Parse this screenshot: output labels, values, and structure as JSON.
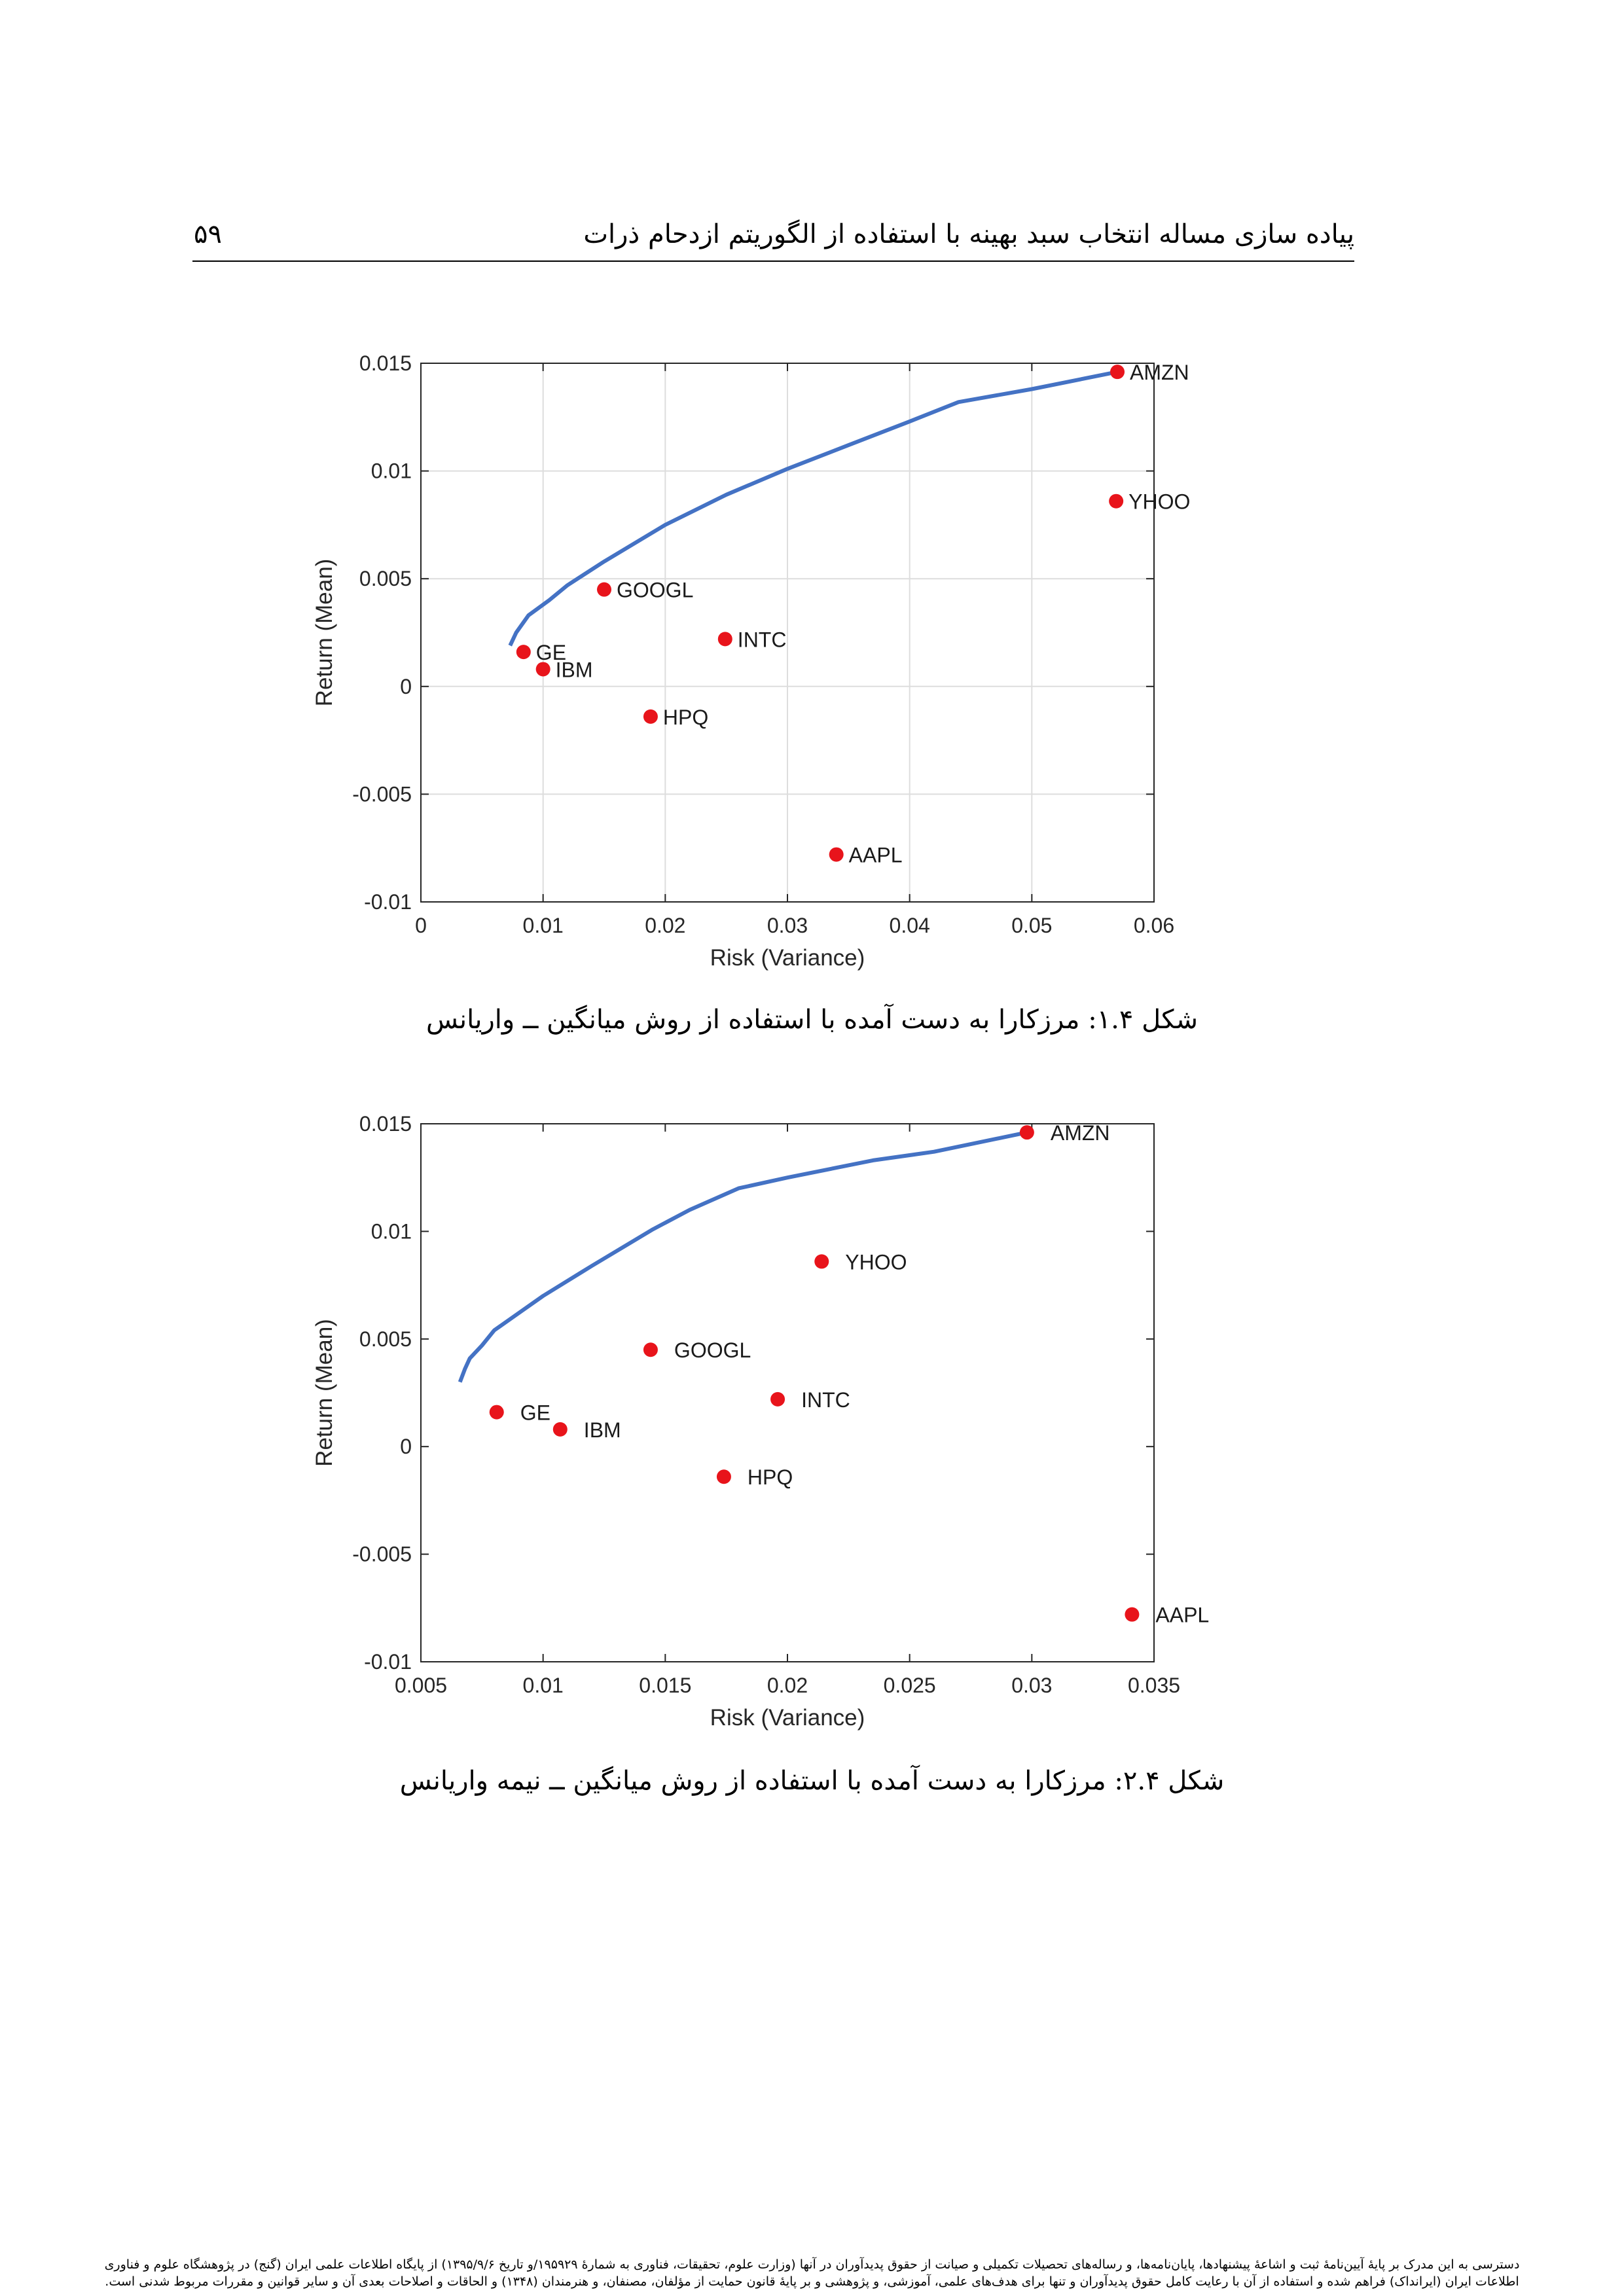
{
  "header": {
    "title": "پیاده سازی مساله انتخاب سبد بهینه با استفاده از الگوریتم ازدحام ذرات",
    "page_number": "۵۹"
  },
  "captions": [
    "شکل ۱.۴: مرزکارا به دست آمده با استفاده از روش میانگین ــ واریانس",
    "شکل ۲.۴: مرزکارا به دست آمده با استفاده از روش میانگین ــ نیمه واریانس"
  ],
  "footer": {
    "line1": "دسترسی به این مدرک بر پایهٔ آیین‌نامهٔ ثبت و اشاعهٔ پیشنهادها، پایان‌نامه‌ها، و رساله‌های تحصیلات تکمیلی و صیانت از حقوق پدیدآوران در آنها (وزارت علوم، تحقیقات، فناوری به شمارهٔ ۱۹۵۹۲۹/و تاریخ ۱۳۹۵/۹/۶)  از پایگاه اطلاعات علمی ایران (گنج) در پژوهشگاه علوم و فناوری",
    "line2": "اطلاعات ایران (ایرانداک) فراهم شده و استفاده از آن با رعایت کامل حقوق پدیدآوران و تنها برای هدف‌های علمی، آموزشی، و پژوهشی و بر پایهٔ قانون حمایت از مؤلفان، مصنفان، و هنرمندان (۱۳۴۸) و الحاقات و اصلاحات بعدی آن و سایر قوانین و مقررات مربوط شدنی است."
  },
  "colors": {
    "frontier": "#4472C4",
    "points": "#E8141B",
    "grid": "#dddddd"
  },
  "chart_data": [
    {
      "type": "scatter",
      "xlabel": "Risk (Variance)",
      "ylabel": "Return (Mean)",
      "xlim": [
        0,
        0.06
      ],
      "ylim": [
        -0.01,
        0.015
      ],
      "xticks": [
        0,
        0.01,
        0.02,
        0.03,
        0.04,
        0.05,
        0.06
      ],
      "xtick_labels": [
        "0",
        "0.01",
        "0.02",
        "0.03",
        "0.04",
        "0.05",
        "0.06"
      ],
      "yticks": [
        -0.01,
        -0.005,
        0,
        0.005,
        0.01,
        0.015
      ],
      "ytick_labels": [
        "-0.01",
        "-0.005",
        "0",
        "0.005",
        "0.01",
        "0.015"
      ],
      "grid": true,
      "points": [
        {
          "label": "AMZN",
          "x": 0.057,
          "y": 0.0146
        },
        {
          "label": "YHOO",
          "x": 0.0569,
          "y": 0.0086
        },
        {
          "label": "GOOGL",
          "x": 0.015,
          "y": 0.0045
        },
        {
          "label": "INTC",
          "x": 0.0249,
          "y": 0.0022
        },
        {
          "label": "GE",
          "x": 0.0084,
          "y": 0.0016
        },
        {
          "label": "IBM",
          "x": 0.01,
          "y": 0.0008
        },
        {
          "label": "HPQ",
          "x": 0.0188,
          "y": -0.0014
        },
        {
          "label": "AAPL",
          "x": 0.034,
          "y": -0.0078
        }
      ],
      "frontier": [
        [
          0.0073,
          0.0019
        ],
        [
          0.0078,
          0.0025
        ],
        [
          0.0088,
          0.0033
        ],
        [
          0.0105,
          0.004
        ],
        [
          0.012,
          0.0047
        ],
        [
          0.015,
          0.0058
        ],
        [
          0.02,
          0.0075
        ],
        [
          0.025,
          0.0089
        ],
        [
          0.03,
          0.0101
        ],
        [
          0.035,
          0.0112
        ],
        [
          0.04,
          0.0123
        ],
        [
          0.044,
          0.0132
        ],
        [
          0.05,
          0.0138
        ],
        [
          0.057,
          0.0146
        ]
      ]
    },
    {
      "type": "scatter",
      "xlabel": "Risk (Variance)",
      "ylabel": "Return (Mean)",
      "xlim": [
        0.005,
        0.035
      ],
      "ylim": [
        -0.01,
        0.015
      ],
      "xticks": [
        0.005,
        0.01,
        0.015,
        0.02,
        0.025,
        0.03,
        0.035
      ],
      "xtick_labels": [
        "0.005",
        "0.01",
        "0.015",
        "0.02",
        "0.025",
        "0.03",
        "0.035"
      ],
      "yticks": [
        -0.01,
        -0.005,
        0,
        0.005,
        0.01,
        0.015
      ],
      "ytick_labels": [
        "-0.01",
        "-0.005",
        "0",
        "0.005",
        "0.01",
        "0.015"
      ],
      "grid": false,
      "points": [
        {
          "label": "AMZN",
          "x": 0.0298,
          "y": 0.0146
        },
        {
          "label": "YHOO",
          "x": 0.0214,
          "y": 0.0086
        },
        {
          "label": "GOOGL",
          "x": 0.0144,
          "y": 0.0045
        },
        {
          "label": "INTC",
          "x": 0.0196,
          "y": 0.0022
        },
        {
          "label": "GE",
          "x": 0.0081,
          "y": 0.0016
        },
        {
          "label": "IBM",
          "x": 0.0107,
          "y": 0.0008
        },
        {
          "label": "HPQ",
          "x": 0.0174,
          "y": -0.0014
        },
        {
          "label": "AAPL",
          "x": 0.0341,
          "y": -0.0078
        }
      ],
      "frontier": [
        [
          0.0066,
          0.003
        ],
        [
          0.0068,
          0.0036
        ],
        [
          0.007,
          0.0041
        ],
        [
          0.0075,
          0.0047
        ],
        [
          0.008,
          0.0054
        ],
        [
          0.009,
          0.0062
        ],
        [
          0.01,
          0.007
        ],
        [
          0.012,
          0.0084
        ],
        [
          0.0145,
          0.0101
        ],
        [
          0.016,
          0.011
        ],
        [
          0.018,
          0.012
        ],
        [
          0.02,
          0.0125
        ],
        [
          0.0235,
          0.0133
        ],
        [
          0.026,
          0.0137
        ],
        [
          0.0298,
          0.0146
        ]
      ]
    }
  ]
}
